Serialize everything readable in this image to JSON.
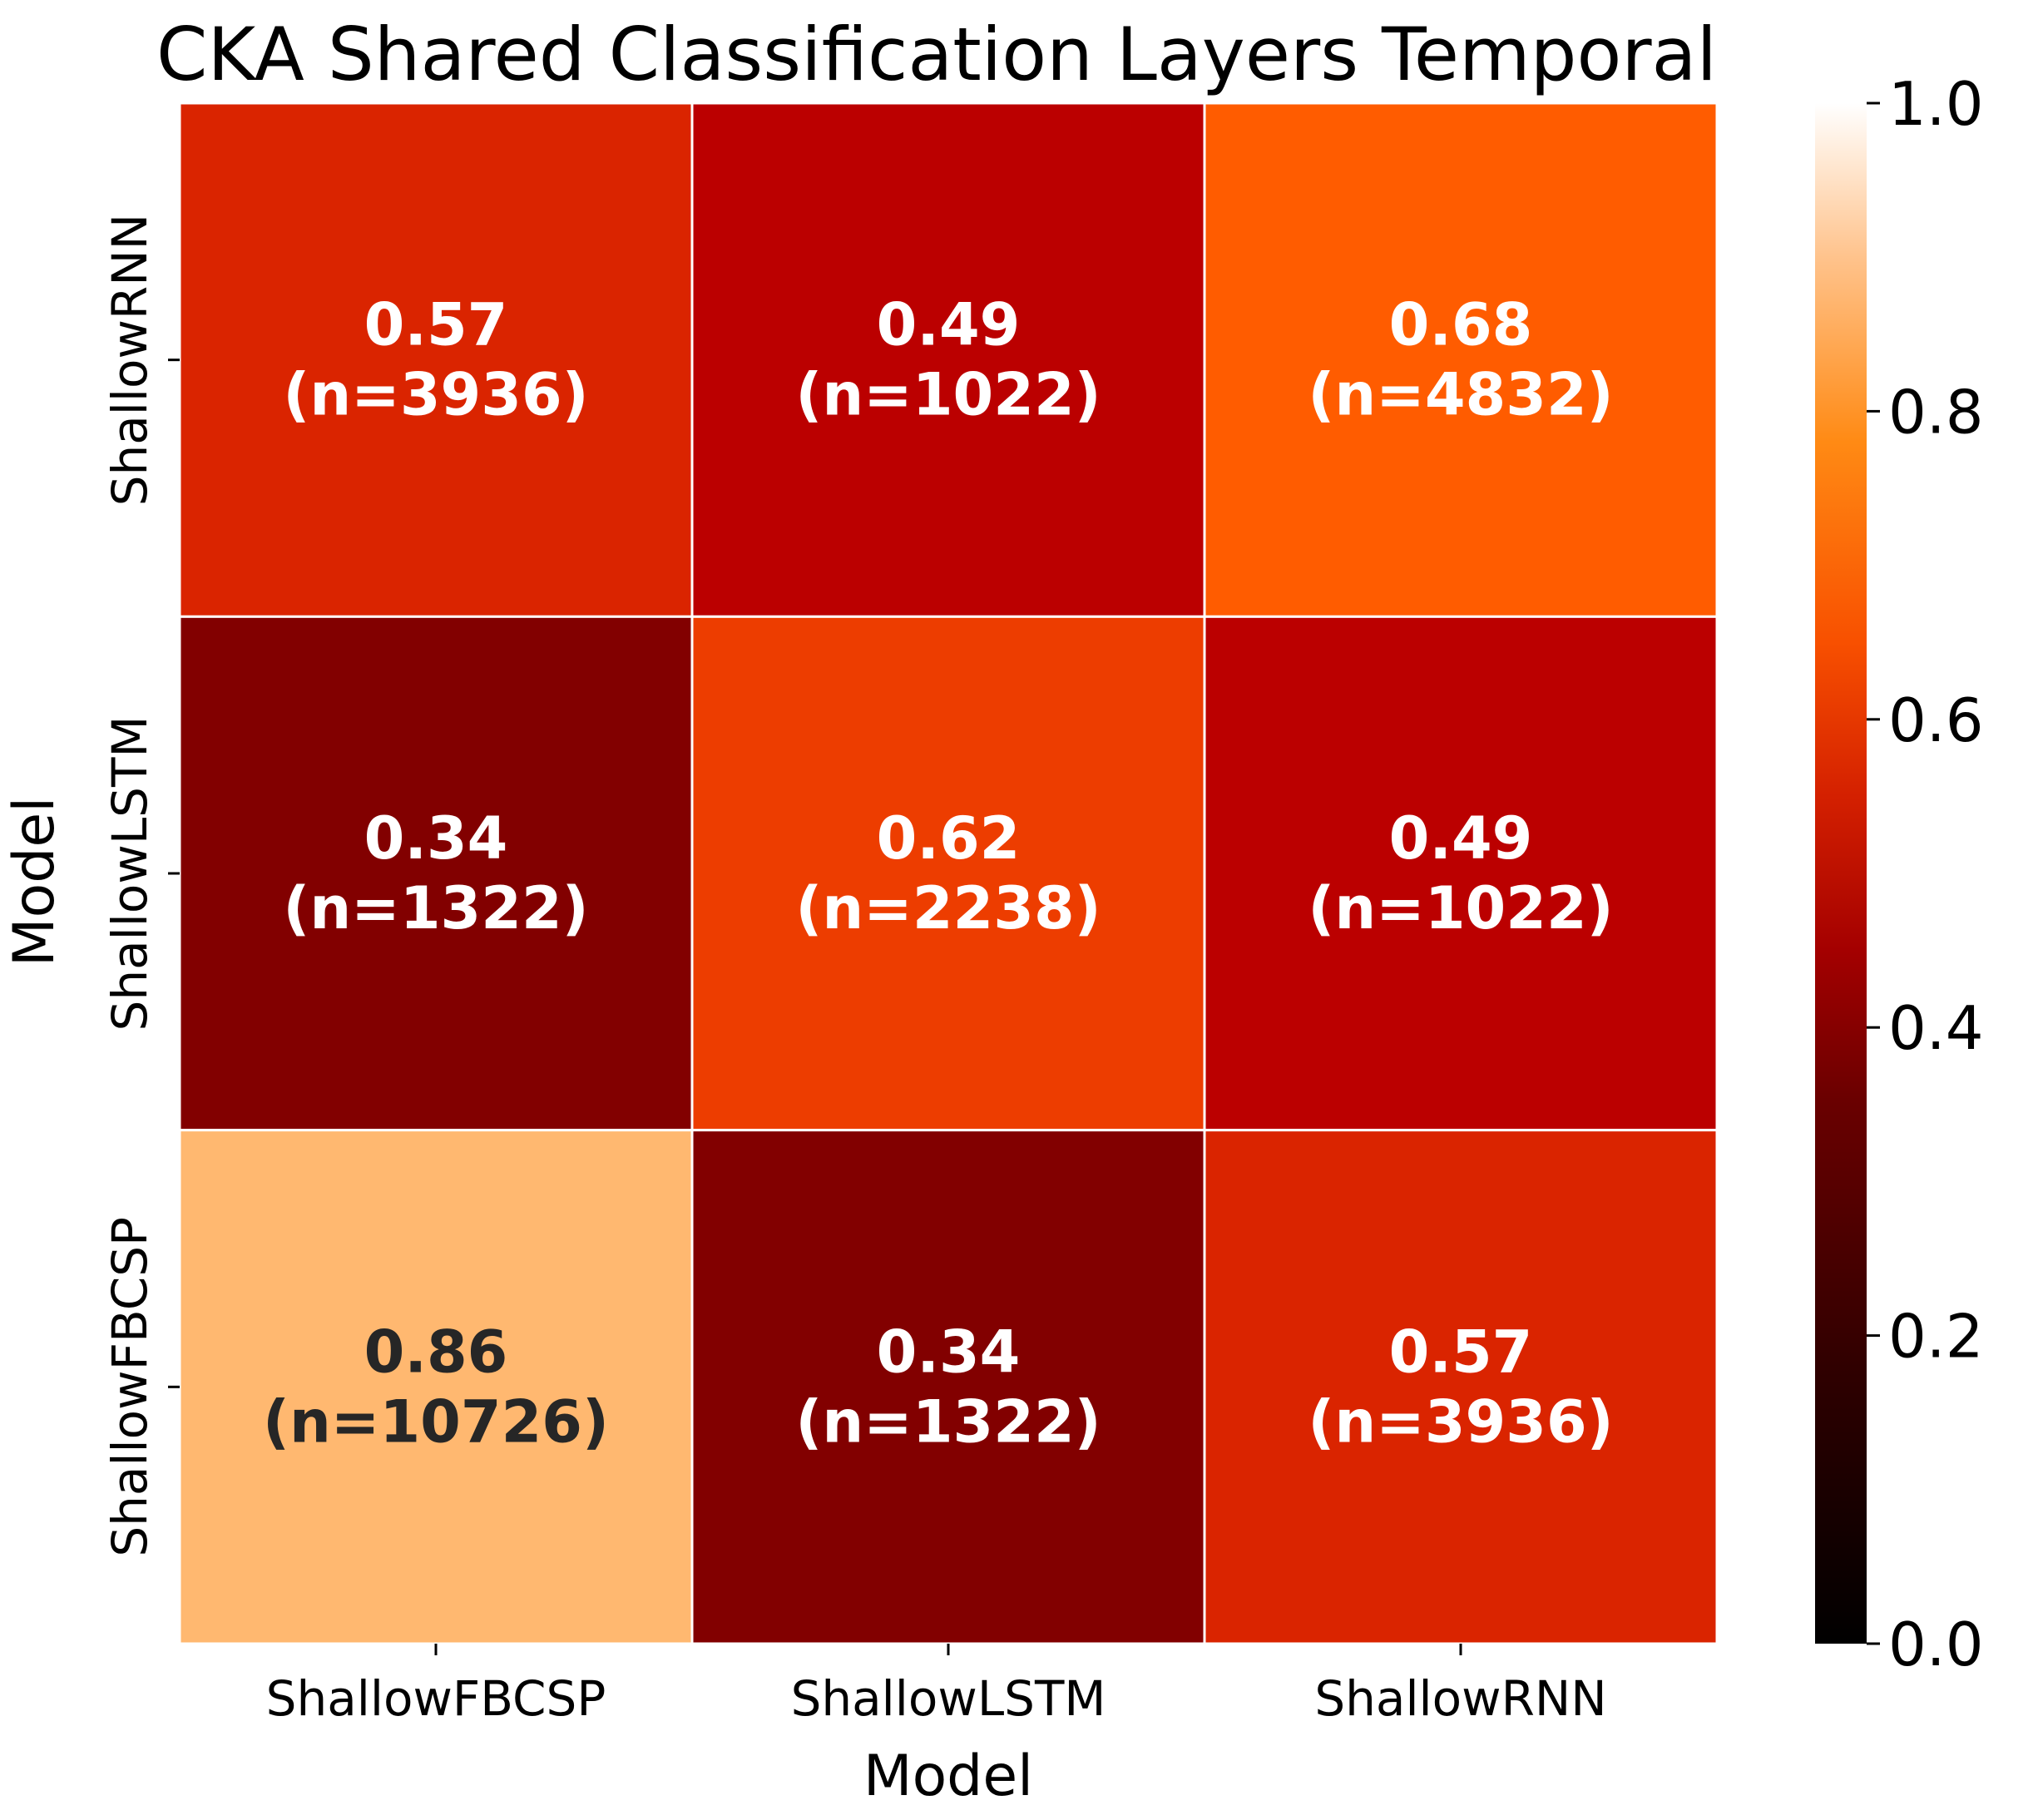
{
  "chart_data": {
    "type": "heatmap",
    "title": "CKA Shared Classification Layers Temporal",
    "xlabel": "Model",
    "ylabel": "Model",
    "x_categories": [
      "ShallowFBCSP",
      "ShallowLSTM",
      "ShallowRNN"
    ],
    "y_categories": [
      "ShallowRNN",
      "ShallowLSTM",
      "ShallowFBCSP"
    ],
    "values": [
      [
        0.57,
        0.49,
        0.68
      ],
      [
        0.34,
        0.62,
        0.49
      ],
      [
        0.86,
        0.34,
        0.57
      ]
    ],
    "annotations": [
      [
        "0.57",
        "(n=3936)",
        "0.49",
        "(n=1022)",
        "0.68",
        "(n=4832)"
      ],
      [
        "0.34",
        "(n=1322)",
        "0.62",
        "(n=2238)",
        "0.49",
        "(n=1022)"
      ],
      [
        "0.86",
        "(n=10726)",
        "0.34",
        "(n=1322)",
        "0.57",
        "(n=3936)"
      ]
    ],
    "colorbar": {
      "range": [
        0.0,
        1.0
      ],
      "ticks": [
        "0.0",
        "0.2",
        "0.4",
        "0.6",
        "0.8",
        "1.0"
      ],
      "colormap": "gist_heat"
    },
    "colors": {
      "grid_line": "#ffffff",
      "light_text": "#ffffff",
      "dark_text": "#262626"
    }
  }
}
